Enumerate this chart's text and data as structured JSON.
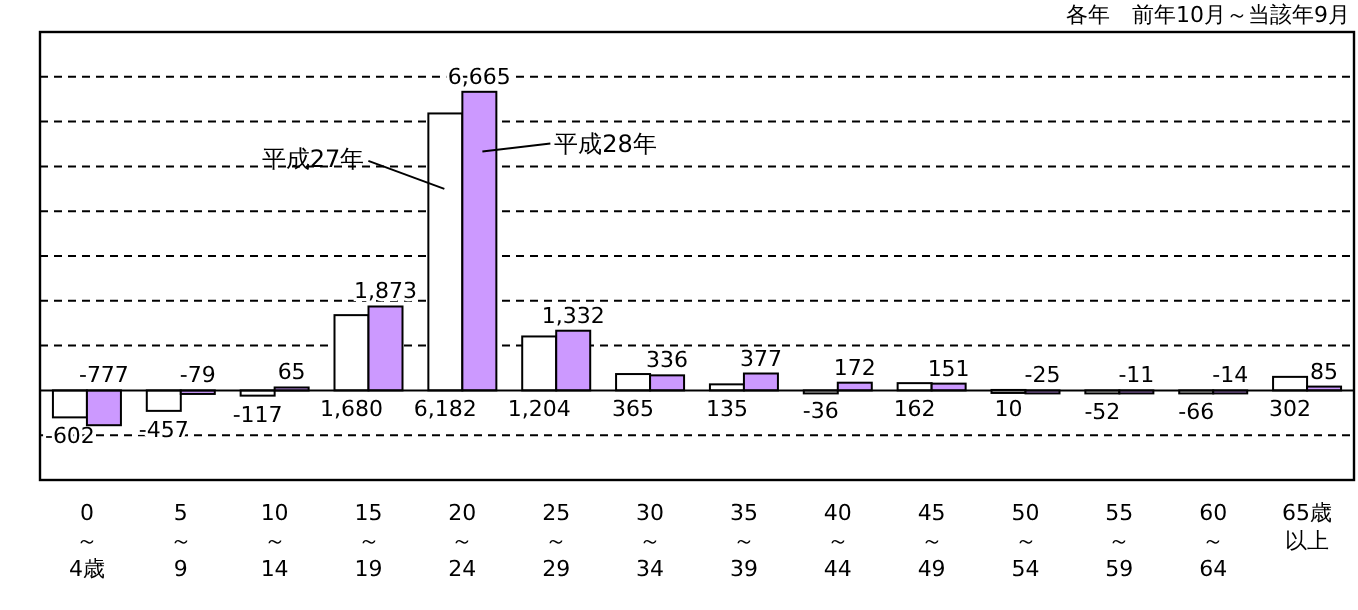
{
  "chart_data": {
    "type": "bar",
    "annotations": [
      "各年　前年10月～当該年9月"
    ],
    "categories": [
      "0～4歳",
      "5～9",
      "10～14",
      "15～19",
      "20～24",
      "25～29",
      "30～34",
      "35～39",
      "40～44",
      "45～49",
      "50～54",
      "55～59",
      "60～64",
      "65歳以上"
    ],
    "series": [
      {
        "name": "平成27年",
        "color": "#ffffff",
        "values": [
          -602,
          -457,
          -117,
          1680,
          6182,
          1204,
          365,
          135,
          -36,
          162,
          10,
          -52,
          -66,
          302
        ],
        "value_labels": [
          "-602",
          "-457",
          "-117",
          "1,680",
          "6,182",
          "1,204",
          "365",
          "135",
          "-36",
          "162",
          "10",
          "-52",
          "-66",
          "302"
        ]
      },
      {
        "name": "平成28年",
        "color": "#cc99ff",
        "values": [
          -777,
          -79,
          65,
          1873,
          6665,
          1332,
          336,
          377,
          172,
          151,
          -25,
          -11,
          -14,
          85
        ],
        "value_labels": [
          "-777",
          "-79",
          "65",
          "1,873",
          "6,665",
          "1,332",
          "336",
          "377",
          "172",
          "151",
          "-25",
          "-11",
          "-14",
          "85"
        ]
      }
    ],
    "ylim": [
      -2000,
      8000
    ],
    "yticks": [
      {
        "value": -2000,
        "label": null
      },
      {
        "value": -1000,
        "label": null
      },
      {
        "value": 0,
        "label": null
      },
      {
        "value": 1000,
        "label": null
      },
      {
        "value": 2000,
        "label": null
      },
      {
        "value": 3000,
        "label": null
      },
      {
        "value": 4000,
        "label": null
      },
      {
        "value": 5000,
        "label": null
      },
      {
        "value": 6000,
        "label": null
      },
      {
        "value": 7000,
        "label": null
      },
      {
        "value": 8000,
        "label": null
      }
    ],
    "grid": "y",
    "tick_labels": "x"
  }
}
